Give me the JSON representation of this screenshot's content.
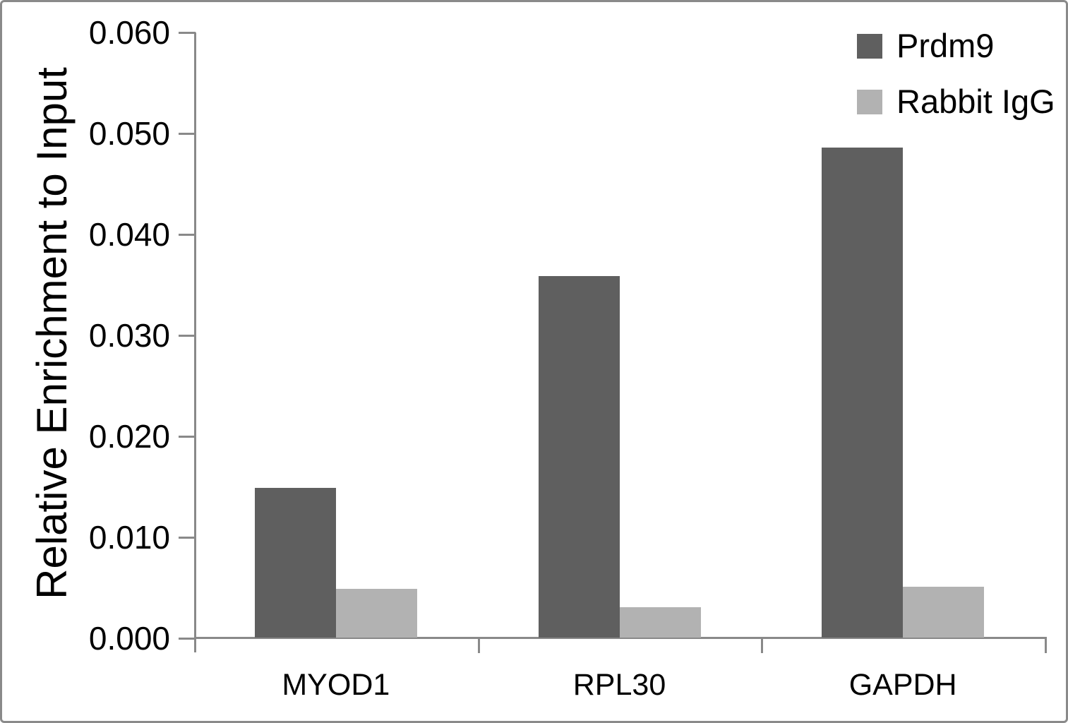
{
  "chart_data": {
    "type": "bar",
    "title": "",
    "xlabel": "",
    "ylabel": "Relative Enrichment to Input",
    "categories": [
      "MYOD1",
      "RPL30",
      "GAPDH"
    ],
    "series": [
      {
        "name": "Prdm9",
        "color": "#5f5f5f",
        "values": [
          0.0148,
          0.0358,
          0.0485
        ]
      },
      {
        "name": "Rabbit IgG",
        "color": "#b2b2b2",
        "values": [
          0.0048,
          0.003,
          0.005
        ]
      }
    ],
    "ylim": [
      0,
      0.06
    ],
    "ytick_step": 0.01,
    "ytick_labels": [
      "0.000",
      "0.010",
      "0.020",
      "0.030",
      "0.040",
      "0.050",
      "0.060"
    ],
    "grid": false,
    "legend_position": "top-right"
  },
  "colors": {
    "axis": "#898989",
    "frame_border": "#8a8a8a",
    "background": "#ffffff",
    "text": "#000000"
  }
}
